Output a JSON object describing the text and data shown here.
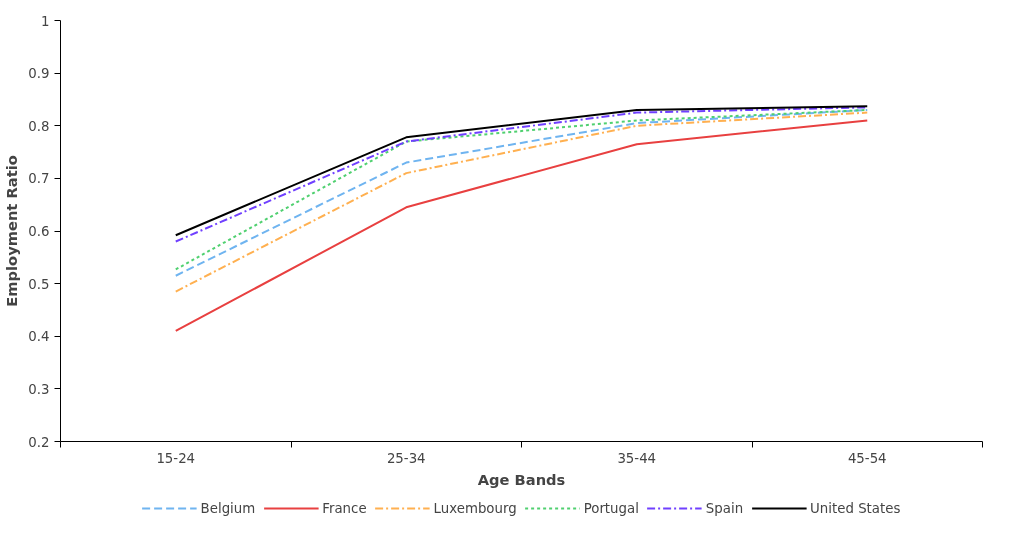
{
  "chart_data": {
    "type": "line",
    "xlabel": "Age Bands",
    "ylabel": "Employment Ratio",
    "categories": [
      "15-24",
      "25-34",
      "35-44",
      "45-54"
    ],
    "ylim": [
      0.2,
      1
    ],
    "yticks": [
      0.2,
      0.3,
      0.4,
      0.5,
      0.6,
      0.7,
      0.8,
      0.9,
      1
    ],
    "grid": false,
    "legend": "bottom",
    "marker": "none",
    "series": [
      {
        "name": "Belgium",
        "color": "#6fb4f0",
        "line_style": "dashed",
        "values": [
          0.515,
          0.73,
          0.805,
          0.83
        ]
      },
      {
        "name": "France",
        "color": "#e84040",
        "line_style": "solid",
        "values": [
          0.41,
          0.645,
          0.765,
          0.81
        ]
      },
      {
        "name": "Luxembourg",
        "color": "#ffb050",
        "line_style": "dashdot",
        "values": [
          0.485,
          0.71,
          0.8,
          0.825
        ]
      },
      {
        "name": "Portugal",
        "color": "#50d070",
        "line_style": "dotted",
        "values": [
          0.527,
          0.77,
          0.81,
          0.83
        ]
      },
      {
        "name": "Spain",
        "color": "#7040ff",
        "line_style": "dashdot",
        "values": [
          0.58,
          0.77,
          0.825,
          0.835
        ]
      },
      {
        "name": "United States",
        "color": "#000000",
        "line_style": "solid",
        "values": [
          0.592,
          0.778,
          0.83,
          0.837
        ]
      }
    ]
  }
}
